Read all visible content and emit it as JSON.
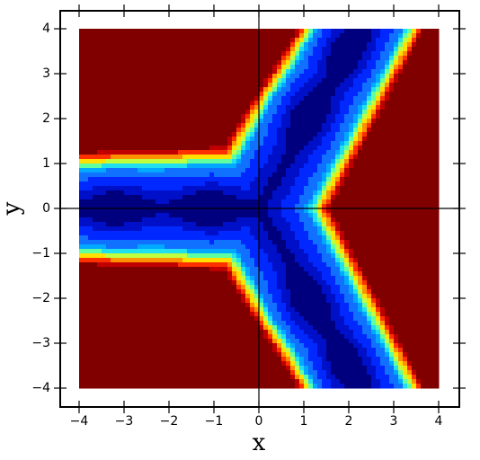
{
  "chart_data": {
    "type": "contour",
    "xlabel": "x",
    "ylabel": "y",
    "xlim": [
      -4.42,
      4.46
    ],
    "ylim": [
      -4.42,
      4.4
    ],
    "xticks": [
      {
        "value": -4,
        "label": "−4"
      },
      {
        "value": -3,
        "label": "−3"
      },
      {
        "value": -2,
        "label": "−2"
      },
      {
        "value": -1,
        "label": "−1"
      },
      0,
      1,
      2,
      3,
      4
    ],
    "yticks": [
      {
        "value": -4,
        "label": "−4"
      },
      {
        "value": -3,
        "label": "−3"
      },
      {
        "value": -2,
        "label": "−2"
      },
      {
        "value": -1,
        "label": "−1"
      },
      0,
      1,
      2,
      3,
      4
    ],
    "colors": [
      "#00007f",
      "#0010c8",
      "#0028ff",
      "#1070ff",
      "#00a8ff",
      "#20e0f0",
      "#60ffa0",
      "#c0ff40",
      "#ffe000",
      "#ff9000",
      "#ff3000",
      "#c00000",
      "#800000"
    ],
    "zero_lines": true
  }
}
